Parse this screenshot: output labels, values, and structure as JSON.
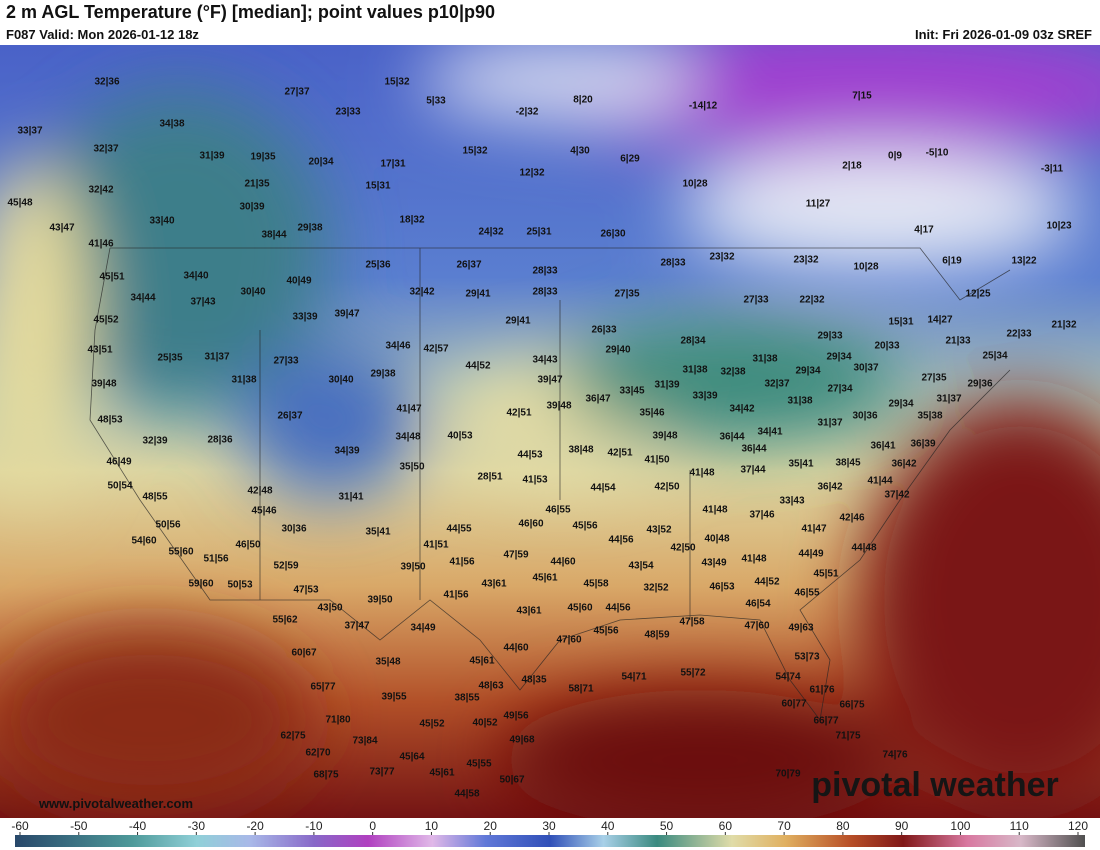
{
  "header": {
    "title": "2 m AGL Temperature (°F) [median]; point values p10|p90",
    "valid": "F087 Valid: Mon 2026-01-12 18z",
    "init": "Init: Fri 2026-01-09 03z SREF"
  },
  "website": "www.pivotalweather.com",
  "watermark": "pivotal weather",
  "colorbar": {
    "ticks": [
      -60,
      -50,
      -40,
      -30,
      -20,
      -10,
      0,
      10,
      20,
      30,
      40,
      50,
      60,
      70,
      80,
      90,
      100,
      110,
      120
    ]
  },
  "points": [
    "32|36",
    "27|37",
    "15|32",
    "5|33",
    "23|33",
    "-2|32",
    "8|20",
    "-14|12",
    "7|15",
    "33|37",
    "34|38",
    "32|37",
    "31|39",
    "19|35",
    "20|34",
    "17|31",
    "15|32",
    "4|30",
    "6|29",
    "2|18",
    "0|9",
    "-5|10",
    "-3|11",
    "12|32",
    "32|42",
    "21|35",
    "15|31",
    "10|28",
    "45|48",
    "30|39",
    "11|27",
    "33|40",
    "18|32",
    "43|47",
    "38|44",
    "29|38",
    "24|32",
    "25|31",
    "26|30",
    "4|17",
    "10|23",
    "41|46",
    "25|36",
    "26|37",
    "28|33",
    "28|33",
    "23|32",
    "23|32",
    "10|28",
    "6|19",
    "13|22",
    "45|51",
    "34|40",
    "40|49",
    "32|42",
    "29|41",
    "28|33",
    "27|35",
    "12|25",
    "34|44",
    "37|43",
    "30|40",
    "27|33",
    "22|32",
    "45|52",
    "33|39",
    "39|47",
    "29|41",
    "15|31",
    "14|27",
    "21|32",
    "26|33",
    "29|33",
    "22|33",
    "43|51",
    "34|46",
    "42|57",
    "28|34",
    "21|33",
    "29|40",
    "29|34",
    "20|33",
    "25|35",
    "31|37",
    "27|33",
    "44|52",
    "34|43",
    "31|38",
    "25|34",
    "31|38",
    "32|38",
    "29|34",
    "30|37",
    "29|38",
    "30|40",
    "31|38",
    "39|47",
    "31|39",
    "32|37",
    "27|35",
    "29|36",
    "27|34",
    "39|48",
    "33|45",
    "33|39",
    "31|38",
    "31|37",
    "29|34",
    "36|47",
    "41|47",
    "42|51",
    "39|48",
    "35|46",
    "34|42",
    "30|36",
    "35|38",
    "48|53",
    "26|37",
    "31|37",
    "34|41",
    "40|53",
    "34|48",
    "39|48",
    "36|44",
    "36|39",
    "32|39",
    "28|36",
    "38|48",
    "42|51",
    "36|44",
    "36|41",
    "34|39",
    "44|53",
    "41|50",
    "35|41",
    "38|45",
    "36|42",
    "46|49",
    "35|50",
    "41|48",
    "37|44",
    "28|51",
    "41|53",
    "41|44",
    "50|54",
    "44|54",
    "42|50",
    "36|42",
    "42|48",
    "48|55",
    "31|41",
    "37|42",
    "33|43",
    "45|46",
    "41|48",
    "37|46",
    "46|55",
    "42|46",
    "50|56",
    "30|36",
    "44|55",
    "46|60",
    "45|56",
    "43|52",
    "41|47",
    "35|41",
    "54|60",
    "44|56",
    "40|48",
    "41|51",
    "46|50",
    "42|50",
    "44|48",
    "44|49",
    "55|60",
    "47|59",
    "51|56",
    "41|56",
    "44|60",
    "41|48",
    "43|49",
    "52|59",
    "39|50",
    "43|54",
    "45|51",
    "45|61",
    "44|52",
    "59|60",
    "50|53",
    "43|61",
    "45|58",
    "46|53",
    "32|52",
    "47|53",
    "46|55",
    "41|56",
    "39|50",
    "45|60",
    "44|56",
    "46|54",
    "43|50",
    "43|61",
    "55|62",
    "37|47",
    "34|49",
    "47|58",
    "47|60",
    "49|63",
    "45|56",
    "48|59",
    "47|60",
    "44|60",
    "60|67",
    "53|73",
    "45|61",
    "35|48",
    "55|72",
    "54|71",
    "54|74",
    "48|63",
    "48|35",
    "58|71",
    "65|77",
    "61|76",
    "39|55",
    "38|55",
    "60|77",
    "66|75",
    "49|56",
    "71|80",
    "40|52",
    "45|52",
    "66|77",
    "62|75",
    "73|84",
    "49|68",
    "71|75",
    "62|70",
    "45|64",
    "74|76",
    "45|55",
    "45|61",
    "68|75",
    "73|77",
    "70|79",
    "50|67",
    "44|58"
  ]
}
